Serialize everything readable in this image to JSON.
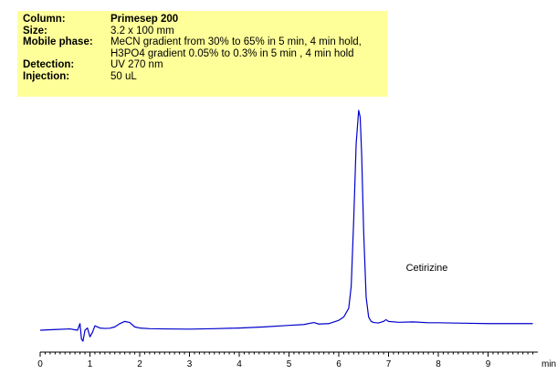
{
  "conditions": {
    "column_label": "Column:",
    "column_value": "Primesep 200",
    "size_label": "Size:",
    "size_value": "3.2 x 100 mm",
    "mobile_label": "Mobile phase:",
    "mobile_value_1": "MeCN gradient from 30% to 65% in 5 min, 4 min hold,",
    "mobile_value_2": "H3PO4 gradient 0.05% to 0.3% in 5 min , 4 min hold",
    "detection_label": "Detection:",
    "detection_value": "UV 270 nm",
    "injection_label": "Injection:",
    "injection_value": "50 uL"
  },
  "chart_data": {
    "type": "line",
    "title": "",
    "xlabel": "min",
    "ylabel": "",
    "xlim": [
      0,
      10
    ],
    "ylim": [
      0,
      1
    ],
    "x_ticks": [
      0,
      1,
      2,
      3,
      4,
      5,
      6,
      7,
      8,
      9
    ],
    "y_axis_visible": false,
    "grid": false,
    "line_color": "#0000cc",
    "annotations": [
      {
        "text": "Cetirizine",
        "x": 7.35,
        "y": 0.27
      }
    ],
    "series": [
      {
        "x": [
          0,
          0.3,
          0.6,
          0.75,
          0.8,
          0.83,
          0.86,
          0.9,
          0.95,
          1.0,
          1.05,
          1.1,
          1.2,
          1.3,
          1.4,
          1.5,
          1.6,
          1.7,
          1.8,
          1.9,
          2.0,
          2.2,
          2.5,
          3.0,
          3.5,
          4.0,
          4.5,
          5.0,
          5.3,
          5.5,
          5.6,
          5.8,
          6.0,
          6.1,
          6.2,
          6.25,
          6.3,
          6.35,
          6.4,
          6.43,
          6.46,
          6.5,
          6.55,
          6.6,
          6.65,
          6.7,
          6.8,
          6.9,
          6.95,
          7.0,
          7.2,
          7.5,
          7.8,
          8.0,
          8.5,
          9.0,
          9.5,
          9.9
        ],
        "y": [
          0.0,
          0.003,
          0.006,
          0.0,
          0.03,
          -0.04,
          -0.05,
          0.0,
          0.01,
          -0.03,
          -0.01,
          0.02,
          0.01,
          0.008,
          0.009,
          0.015,
          0.03,
          0.04,
          0.035,
          0.015,
          0.01,
          0.007,
          0.006,
          0.005,
          0.007,
          0.01,
          0.015,
          0.022,
          0.026,
          0.035,
          0.028,
          0.03,
          0.045,
          0.06,
          0.1,
          0.2,
          0.5,
          0.85,
          1.0,
          0.97,
          0.8,
          0.45,
          0.15,
          0.06,
          0.04,
          0.035,
          0.033,
          0.04,
          0.048,
          0.04,
          0.036,
          0.038,
          0.034,
          0.034,
          0.032,
          0.03,
          0.03,
          0.03
        ]
      }
    ]
  }
}
